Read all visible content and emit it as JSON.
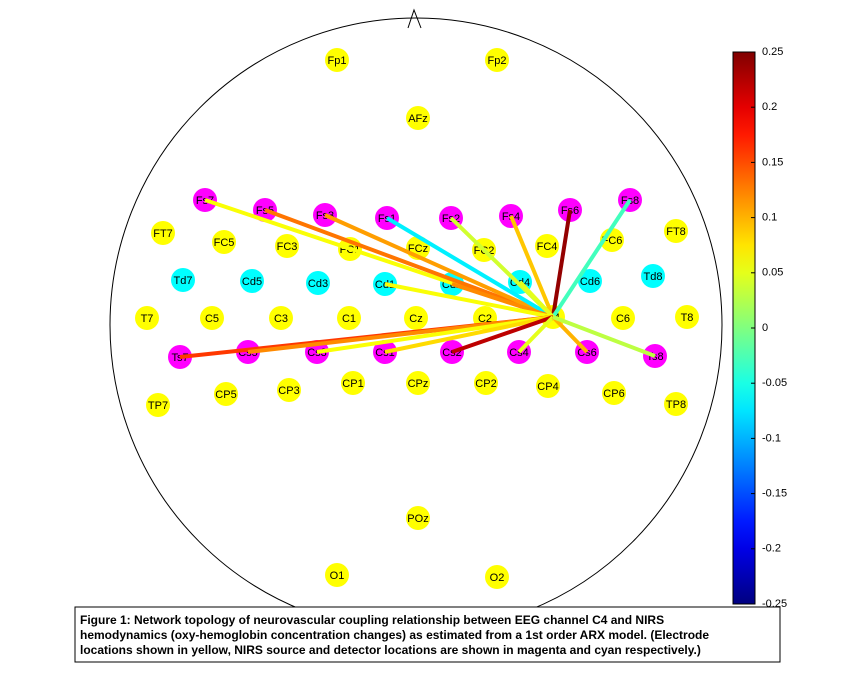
{
  "head": {
    "nodes": [
      {
        "label": "Fp1",
        "kind": "electrode"
      },
      {
        "label": "Fp2",
        "kind": "electrode"
      },
      {
        "label": "AFz",
        "kind": "electrode"
      },
      {
        "label": "Fs7",
        "kind": "source"
      },
      {
        "label": "Fs5",
        "kind": "source"
      },
      {
        "label": "Fs3",
        "kind": "source"
      },
      {
        "label": "Fs1",
        "kind": "source"
      },
      {
        "label": "Fs2",
        "kind": "source"
      },
      {
        "label": "Fs4",
        "kind": "source"
      },
      {
        "label": "Fs6",
        "kind": "source"
      },
      {
        "label": "Fs8",
        "kind": "source"
      },
      {
        "label": "FT7",
        "kind": "electrode"
      },
      {
        "label": "FC5",
        "kind": "electrode"
      },
      {
        "label": "FC3",
        "kind": "electrode"
      },
      {
        "label": "FC1",
        "kind": "electrode"
      },
      {
        "label": "FCz",
        "kind": "electrode"
      },
      {
        "label": "FC2",
        "kind": "electrode"
      },
      {
        "label": "FC4",
        "kind": "electrode"
      },
      {
        "label": "FC6",
        "kind": "electrode"
      },
      {
        "label": "FT8",
        "kind": "electrode"
      },
      {
        "label": "Td7",
        "kind": "detector"
      },
      {
        "label": "Cd5",
        "kind": "detector"
      },
      {
        "label": "Cd3",
        "kind": "detector"
      },
      {
        "label": "Cd1",
        "kind": "detector"
      },
      {
        "label": "Cd2",
        "kind": "detector"
      },
      {
        "label": "Cd4",
        "kind": "detector"
      },
      {
        "label": "Cd6",
        "kind": "detector"
      },
      {
        "label": "Td8",
        "kind": "detector"
      },
      {
        "label": "T7",
        "kind": "electrode"
      },
      {
        "label": "C5",
        "kind": "electrode"
      },
      {
        "label": "C3",
        "kind": "electrode"
      },
      {
        "label": "C1",
        "kind": "electrode"
      },
      {
        "label": "Cz",
        "kind": "electrode"
      },
      {
        "label": "C2",
        "kind": "electrode"
      },
      {
        "label": "C4",
        "kind": "electrode"
      },
      {
        "label": "C6",
        "kind": "electrode"
      },
      {
        "label": "T8",
        "kind": "electrode"
      },
      {
        "label": "Ts7",
        "kind": "source"
      },
      {
        "label": "Cs5",
        "kind": "source"
      },
      {
        "label": "Cs3",
        "kind": "source"
      },
      {
        "label": "Cs1",
        "kind": "source"
      },
      {
        "label": "Cs2",
        "kind": "source"
      },
      {
        "label": "Cs4",
        "kind": "source"
      },
      {
        "label": "Cs6",
        "kind": "source"
      },
      {
        "label": "Ts8",
        "kind": "source"
      },
      {
        "label": "TP7",
        "kind": "electrode"
      },
      {
        "label": "CP5",
        "kind": "electrode"
      },
      {
        "label": "CP3",
        "kind": "electrode"
      },
      {
        "label": "CP1",
        "kind": "electrode"
      },
      {
        "label": "CPz",
        "kind": "electrode"
      },
      {
        "label": "CP2",
        "kind": "electrode"
      },
      {
        "label": "CP4",
        "kind": "electrode"
      },
      {
        "label": "CP6",
        "kind": "electrode"
      },
      {
        "label": "TP8",
        "kind": "electrode"
      },
      {
        "label": "POz",
        "kind": "electrode"
      },
      {
        "label": "O1",
        "kind": "electrode"
      },
      {
        "label": "O2",
        "kind": "electrode"
      }
    ]
  },
  "node_colors": {
    "electrode": "#ffff00",
    "source": "#ff00ff",
    "detector": "#00ffff"
  },
  "edges": [
    {
      "value": 0.06
    },
    {
      "value": 0.13
    },
    {
      "value": 0.11
    },
    {
      "value": -0.07
    },
    {
      "value": 0.04
    },
    {
      "value": 0.09
    },
    {
      "value": 0.24
    },
    {
      "value": -0.03
    },
    {
      "value": 0.12
    },
    {
      "value": 0.05
    },
    {
      "value": 0.06
    },
    {
      "value": 0.16
    },
    {
      "value": 0.12
    },
    {
      "value": 0.06
    },
    {
      "value": 0.08
    },
    {
      "value": 0.22
    },
    {
      "value": 0.05
    },
    {
      "value": 0.1
    },
    {
      "value": 0.03
    }
  ],
  "colorbar": {
    "colormap": "jet",
    "lim": [
      -0.25,
      0.25
    ],
    "ticks": [
      0.25,
      0.2,
      0.15,
      0.1,
      0.05,
      0,
      -0.05,
      -0.1,
      -0.15,
      -0.2,
      -0.25
    ]
  },
  "caption": {
    "lines": [
      "Figure 1: Network topology of neurovascular coupling relationship between EEG channel C4 and NIRS",
      "hemodynamics (oxy-hemoglobin concentration changes) as estimated from a 1st order ARX model. (Electrode",
      "locations shown in yellow, NIRS source and detector locations are shown in magenta and cyan respectively.)"
    ]
  }
}
